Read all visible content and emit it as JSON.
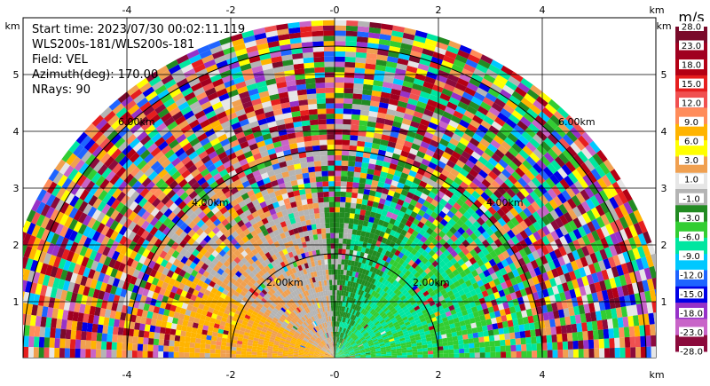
{
  "info": {
    "start_time": "Start time: 2023/07/30 00:02:11.119",
    "instrument": "WLS200s-181/WLS200s-181",
    "field": "Field: VEL",
    "azimuth": "Azimuth(deg): 170.00",
    "nrays": "NRays: 90"
  },
  "axes": {
    "unit": "km",
    "x_ticks": [
      "-4",
      "-2",
      "-0",
      "2",
      "4"
    ],
    "y_ticks": [
      "1",
      "2",
      "3",
      "4",
      "5"
    ]
  },
  "ring_labels": {
    "r2": "2.00km",
    "r4": "4.00km",
    "r6": "6.00km"
  },
  "colorbar": {
    "unit": "m/s",
    "labels": [
      "28.0",
      "23.0",
      "18.0",
      "15.0",
      "12.0",
      "9.0",
      "6.0",
      "3.0",
      "1.0",
      "-1.0",
      "-3.0",
      "-6.0",
      "-9.0",
      "-12.0",
      "-15.0",
      "-18.0",
      "-23.0",
      "-28.0"
    ],
    "colors": [
      "#7a0a2a",
      "#a00020",
      "#b40014",
      "#e61e1e",
      "#f05050",
      "#ff8c5a",
      "#ffb400",
      "#ffff00",
      "#f0a050",
      "#e6e6e6",
      "#b4b4b4",
      "#228b22",
      "#32cd32",
      "#00e6a0",
      "#00c8ff",
      "#1e64ff",
      "#0000e6",
      "#9632c8",
      "#c864c8",
      "#8b0a3c"
    ]
  }
}
